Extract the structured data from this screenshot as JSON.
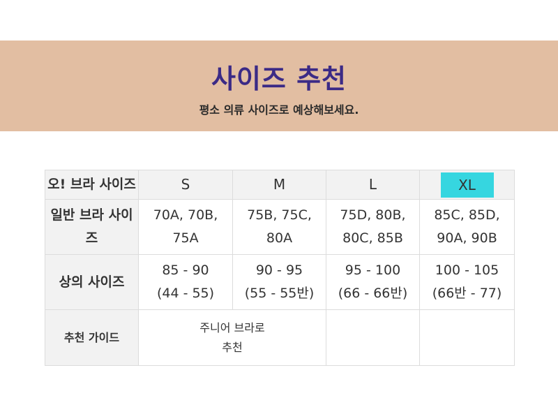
{
  "banner": {
    "title": "사이즈 추천",
    "subtitle": "평소 의류 사이즈로 예상해보세요.",
    "background": "#e2bea2",
    "title_color": "#3b2a86"
  },
  "table": {
    "row_headers": {
      "oh_bra": "오! 브라 사이즈",
      "normal_bra": "일반 브라 사이즈",
      "top": "상의 사이즈",
      "guide": "추천 가이드"
    },
    "sizes": [
      "S",
      "M",
      "L",
      "XL"
    ],
    "highlight_size": "XL",
    "highlight_color": "#36d6e0",
    "normal_bra": [
      {
        "line1": "70A, 70B,",
        "line2": "75A"
      },
      {
        "line1": "75B, 75C,",
        "line2": "80A"
      },
      {
        "line1": "75D, 80B,",
        "line2": "80C, 85B"
      },
      {
        "line1": "85C, 85D,",
        "line2": "90A, 90B"
      }
    ],
    "top": [
      {
        "line1": "85 - 90",
        "line2": "(44 - 55)"
      },
      {
        "line1": "90 - 95",
        "line2": "(55 - 55반)"
      },
      {
        "line1": "95 - 100",
        "line2": "(66 - 66반)"
      },
      {
        "line1": "100 - 105",
        "line2": "(66반 - 77)"
      }
    ],
    "guide": {
      "line1": "주니어 브라로",
      "line2": "추천"
    }
  }
}
